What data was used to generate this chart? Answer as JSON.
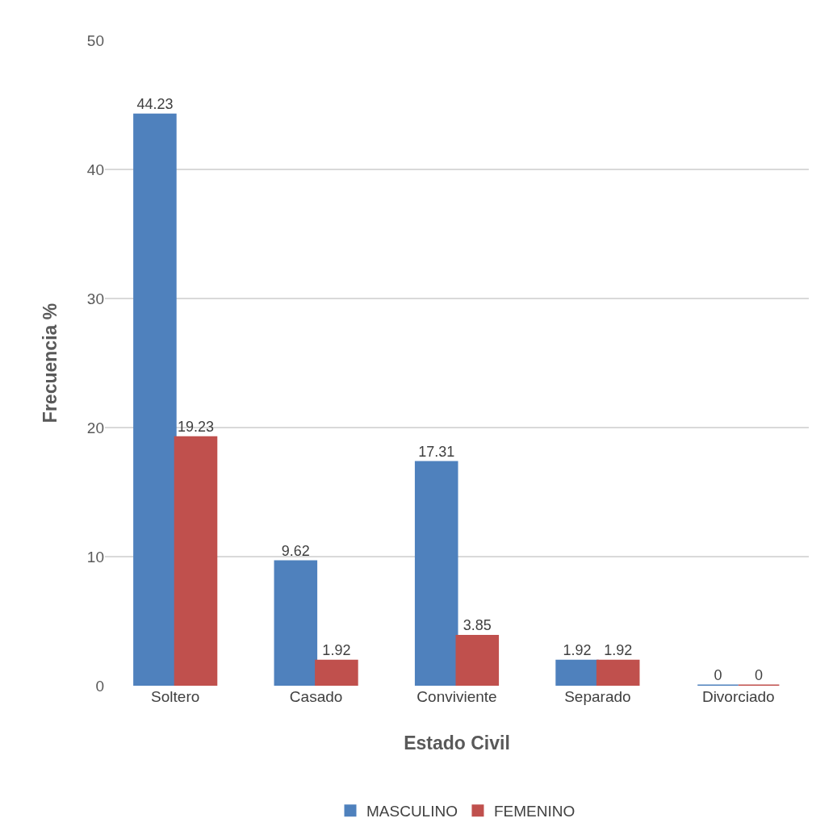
{
  "chart_data": {
    "type": "bar",
    "xlabel": "Estado Civil",
    "ylabel": "Frecuencia %",
    "categories": [
      "Soltero",
      "Casado",
      "Conviviente",
      "Separado",
      "Divorciado"
    ],
    "series": [
      {
        "name": "MASCULINO",
        "color": "#4f81bd",
        "values": [
          44.23,
          9.62,
          17.31,
          1.92,
          0
        ]
      },
      {
        "name": "FEMENINO",
        "color": "#c0504d",
        "values": [
          19.23,
          1.92,
          3.85,
          1.92,
          0
        ]
      }
    ],
    "ylim": [
      0,
      50
    ],
    "yticks": [
      0,
      10,
      20,
      30,
      40,
      50
    ],
    "grid": "y",
    "legend": "bottom",
    "data_labels": true
  }
}
